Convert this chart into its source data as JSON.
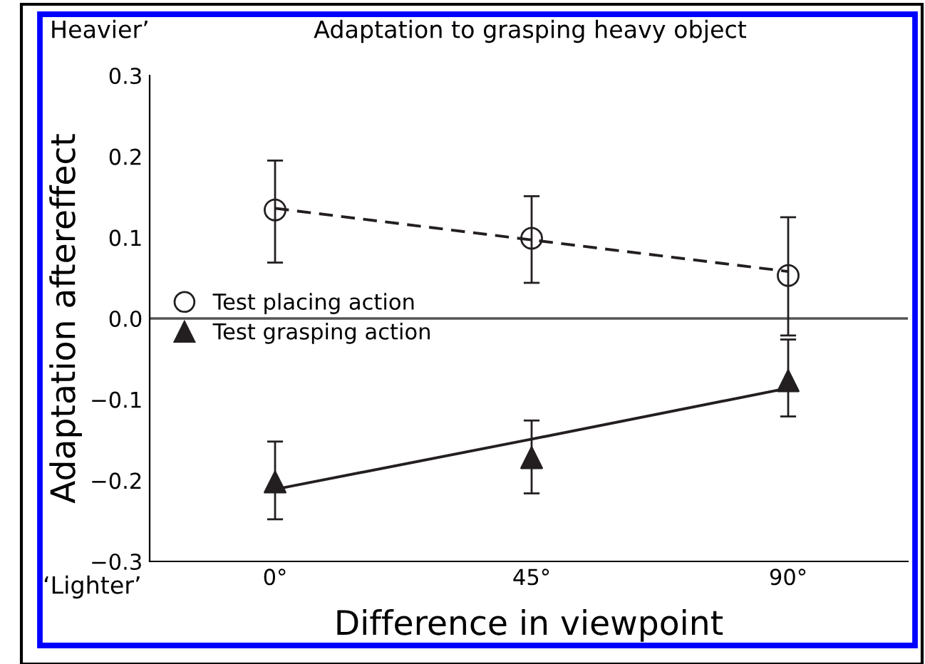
{
  "chart_data": {
    "type": "scatter",
    "title": "Adaptation to grasping heavy object",
    "xlabel": "Difference in viewpoint",
    "ylabel": "Adaptation aftereffect",
    "x": [
      0,
      45,
      90
    ],
    "xlim": [
      -22,
      111
    ],
    "xticks": [
      {
        "value": 0,
        "label": "0°"
      },
      {
        "value": 45,
        "label": "45°"
      },
      {
        "value": 90,
        "label": "90°"
      }
    ],
    "ylim": [
      -0.3,
      0.3
    ],
    "yticks": [
      {
        "value": 0.3,
        "label": "0.3"
      },
      {
        "value": 0.2,
        "label": "0.2"
      },
      {
        "value": 0.1,
        "label": "0.1"
      },
      {
        "value": 0.0,
        "label": "0.0"
      },
      {
        "value": -0.1,
        "label": "−0.1"
      },
      {
        "value": -0.2,
        "label": "−0.2"
      },
      {
        "value": -0.3,
        "label": "−0.3"
      }
    ],
    "series": [
      {
        "name": "Test placing action",
        "marker": "circle",
        "color": "#231f20",
        "values": [
          0.134,
          0.099,
          0.053
        ],
        "errors": [
          [
            0.069,
            0.195
          ],
          [
            0.044,
            0.151
          ],
          [
            -0.021,
            0.125
          ]
        ]
      },
      {
        "name": "Test grasping action",
        "marker": "triangle",
        "color": "#231f20",
        "values": [
          -0.202,
          -0.172,
          -0.077
        ],
        "errors": [
          [
            -0.248,
            -0.152
          ],
          [
            -0.216,
            -0.126
          ],
          [
            -0.121,
            -0.026
          ]
        ]
      },
      {
        "type": "line",
        "values": [
          0.136,
          0.097,
          0.058
        ],
        "color": "#231f20",
        "line_style": "dashed",
        "marker": "none"
      },
      {
        "type": "line",
        "values": [
          -0.211,
          -0.149,
          -0.086
        ],
        "color": "#231f20",
        "line_style": "solid",
        "marker": "none"
      }
    ],
    "ref_lines": [
      {
        "axis": "y",
        "value": 0,
        "color": "#555555"
      }
    ],
    "annotations": [
      "Heavier’",
      "‘Lighter’"
    ],
    "legend": "left",
    "grid": false
  }
}
